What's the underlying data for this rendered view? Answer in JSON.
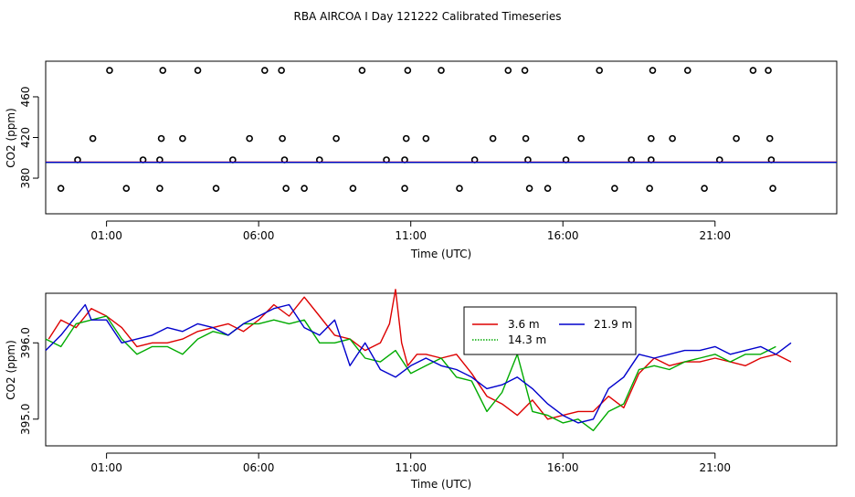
{
  "title": "RBA AIRCOA I  Day 121222  Calibrated Timeseries",
  "x_tick_labels": [
    "01:00",
    "06:00",
    "11:00",
    "16:00",
    "21:00"
  ],
  "chart_data": [
    {
      "type": "scatter",
      "title": "",
      "xlabel": "Time (UTC)",
      "ylabel": "CO2 (ppm)",
      "x_unit": "hours UTC",
      "xlim": [
        -1,
        25
      ],
      "ylim": [
        345,
        495
      ],
      "yticks": [
        380,
        420,
        460
      ],
      "series": [
        {
          "kind": "points",
          "color": "#000000",
          "points": [
            [
              -0.5,
              370
            ],
            [
              0.05,
              398
            ],
            [
              0.55,
              419
            ],
            [
              1.1,
              486
            ],
            [
              1.65,
              370
            ],
            [
              2.2,
              398
            ],
            [
              2.75,
              370
            ],
            [
              2.75,
              398
            ],
            [
              2.8,
              419
            ],
            [
              2.85,
              486
            ],
            [
              3.5,
              419
            ],
            [
              4.0,
              486
            ],
            [
              4.6,
              370
            ],
            [
              5.15,
              398
            ],
            [
              5.7,
              419
            ],
            [
              6.2,
              486
            ],
            [
              6.75,
              486
            ],
            [
              6.78,
              419
            ],
            [
              6.85,
              398
            ],
            [
              6.9,
              370
            ],
            [
              7.5,
              370
            ],
            [
              8.0,
              398
            ],
            [
              8.55,
              419
            ],
            [
              9.1,
              370
            ],
            [
              9.4,
              486
            ],
            [
              10.2,
              398
            ],
            [
              10.8,
              398
            ],
            [
              10.8,
              370
            ],
            [
              10.85,
              419
            ],
            [
              10.9,
              486
            ],
            [
              11.5,
              419
            ],
            [
              12.0,
              486
            ],
            [
              12.6,
              370
            ],
            [
              13.1,
              398
            ],
            [
              13.7,
              419
            ],
            [
              14.2,
              486
            ],
            [
              14.75,
              486
            ],
            [
              14.78,
              419
            ],
            [
              14.85,
              398
            ],
            [
              14.9,
              370
            ],
            [
              15.5,
              370
            ],
            [
              16.1,
              398
            ],
            [
              16.6,
              419
            ],
            [
              17.2,
              486
            ],
            [
              17.7,
              370
            ],
            [
              18.25,
              398
            ],
            [
              18.85,
              370
            ],
            [
              18.9,
              398
            ],
            [
              18.9,
              419
            ],
            [
              18.95,
              486
            ],
            [
              19.6,
              419
            ],
            [
              20.1,
              486
            ],
            [
              20.65,
              370
            ],
            [
              21.15,
              398
            ],
            [
              21.7,
              419
            ],
            [
              22.25,
              486
            ],
            [
              22.75,
              486
            ],
            [
              22.8,
              419
            ],
            [
              22.85,
              398
            ],
            [
              22.9,
              370
            ]
          ]
        },
        {
          "kind": "line",
          "color": "#dd0000",
          "x": [
            -1,
            25
          ],
          "y": [
            395.8,
            395.8
          ]
        },
        {
          "kind": "line",
          "color": "#00aa00",
          "x": [
            -1,
            25
          ],
          "y": [
            395.5,
            395.5
          ]
        },
        {
          "kind": "line",
          "color": "#0000cc",
          "x": [
            -1,
            25
          ],
          "y": [
            395.6,
            395.6
          ]
        }
      ]
    },
    {
      "type": "line",
      "title": "",
      "xlabel": "Time (UTC)",
      "ylabel": "CO2 (ppm)",
      "x_unit": "hours UTC",
      "xlim": [
        -1,
        25
      ],
      "ylim": [
        394.65,
        396.65
      ],
      "yticks": [
        395.0,
        396.0
      ],
      "ytick_labels": [
        "395.0",
        "396.0"
      ],
      "legend": {
        "position": "top-center",
        "items": [
          {
            "label": "3.6 m",
            "color": "#dd0000"
          },
          {
            "label": "21.9 m",
            "color": "#0000cc"
          },
          {
            "label": "14.3 m",
            "color": "#00aa00"
          }
        ]
      },
      "series": [
        {
          "name": "3.6 m",
          "color": "#dd0000",
          "x": [
            -0.9,
            -0.5,
            0.0,
            0.5,
            1.0,
            1.5,
            2.0,
            2.5,
            3.0,
            3.5,
            4.0,
            4.5,
            5.0,
            5.5,
            6.0,
            6.5,
            7.0,
            7.5,
            8.0,
            8.5,
            9.0,
            9.5,
            10.0,
            10.3,
            10.5,
            10.7,
            10.9,
            11.2,
            11.5,
            12.0,
            12.5,
            13.0,
            13.5,
            14.0,
            14.5,
            15.0,
            15.5,
            16.0,
            16.5,
            17.0,
            17.5,
            18.0,
            18.5,
            19.0,
            19.5,
            20.0,
            20.5,
            21.0,
            21.5,
            22.0,
            22.5,
            23.0,
            23.5
          ],
          "y": [
            396.05,
            396.3,
            396.2,
            396.45,
            396.35,
            396.2,
            395.95,
            396.0,
            396.0,
            396.05,
            396.15,
            396.2,
            396.25,
            396.15,
            396.3,
            396.5,
            396.35,
            396.6,
            396.35,
            396.1,
            396.05,
            395.9,
            396.0,
            396.25,
            396.7,
            396.0,
            395.7,
            395.85,
            395.85,
            395.8,
            395.85,
            395.6,
            395.3,
            395.2,
            395.05,
            395.25,
            395.0,
            395.05,
            395.1,
            395.1,
            395.3,
            395.15,
            395.6,
            395.8,
            395.7,
            395.75,
            395.75,
            395.8,
            395.75,
            395.7,
            395.8,
            395.85,
            395.75
          ]
        },
        {
          "name": "14.3 m",
          "color": "#00aa00",
          "x": [
            -1.0,
            -0.5,
            0.0,
            0.5,
            1.0,
            1.5,
            2.0,
            2.5,
            3.0,
            3.5,
            4.0,
            4.5,
            5.0,
            5.5,
            6.0,
            6.5,
            7.0,
            7.5,
            8.0,
            8.5,
            9.0,
            9.5,
            10.0,
            10.5,
            11.0,
            11.5,
            12.0,
            12.5,
            13.0,
            13.5,
            14.0,
            14.5,
            15.0,
            15.5,
            16.0,
            16.5,
            17.0,
            17.5,
            18.0,
            18.5,
            19.0,
            19.5,
            20.0,
            20.5,
            21.0,
            21.5,
            22.0,
            22.5,
            23.0
          ],
          "y": [
            396.05,
            395.95,
            396.25,
            396.3,
            396.35,
            396.05,
            395.85,
            395.95,
            395.95,
            395.85,
            396.05,
            396.15,
            396.1,
            396.25,
            396.25,
            396.3,
            396.25,
            396.3,
            396.0,
            396.0,
            396.05,
            395.8,
            395.75,
            395.9,
            395.6,
            395.7,
            395.8,
            395.55,
            395.5,
            395.1,
            395.35,
            395.85,
            395.1,
            395.05,
            394.95,
            395.0,
            394.85,
            395.1,
            395.2,
            395.65,
            395.7,
            395.65,
            395.75,
            395.8,
            395.85,
            395.75,
            395.85,
            395.85,
            395.95
          ]
        },
        {
          "name": "21.9 m",
          "color": "#0000cc",
          "x": [
            -1.0,
            -0.5,
            0.0,
            0.3,
            0.5,
            1.0,
            1.5,
            2.0,
            2.5,
            3.0,
            3.5,
            4.0,
            4.5,
            5.0,
            5.5,
            6.0,
            6.5,
            7.0,
            7.5,
            8.0,
            8.5,
            9.0,
            9.5,
            10.0,
            10.5,
            11.0,
            11.5,
            12.0,
            12.5,
            13.0,
            13.5,
            14.0,
            14.5,
            15.0,
            15.5,
            16.0,
            16.5,
            17.0,
            17.5,
            18.0,
            18.5,
            19.0,
            19.5,
            20.0,
            20.5,
            21.0,
            21.5,
            22.0,
            22.5,
            23.0,
            23.5
          ],
          "y": [
            395.9,
            396.1,
            396.35,
            396.5,
            396.3,
            396.3,
            396.0,
            396.05,
            396.1,
            396.2,
            396.15,
            396.25,
            396.2,
            396.1,
            396.25,
            396.35,
            396.45,
            396.5,
            396.2,
            396.1,
            396.3,
            395.7,
            396.0,
            395.65,
            395.55,
            395.7,
            395.8,
            395.7,
            395.65,
            395.55,
            395.4,
            395.45,
            395.55,
            395.4,
            395.2,
            395.05,
            394.95,
            395.0,
            395.4,
            395.55,
            395.85,
            395.8,
            395.85,
            395.9,
            395.9,
            395.95,
            395.85,
            395.9,
            395.95,
            395.85,
            396.0
          ]
        }
      ]
    }
  ]
}
